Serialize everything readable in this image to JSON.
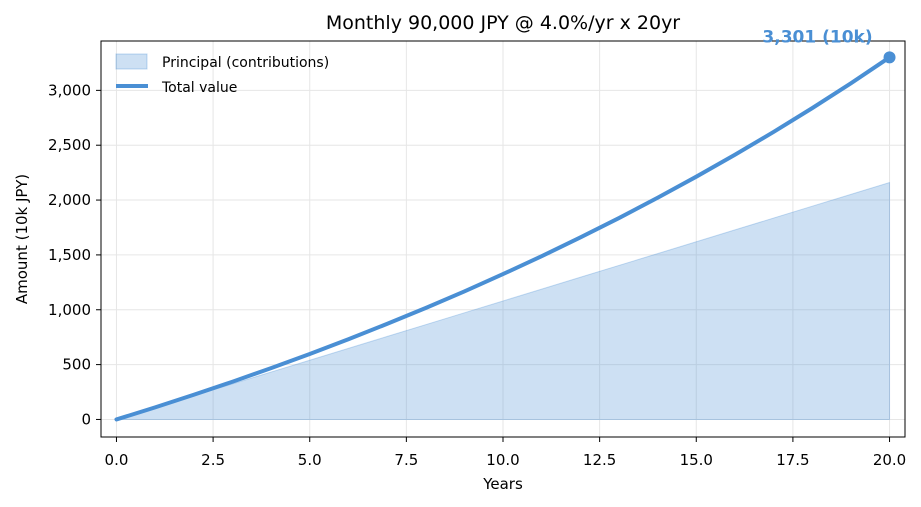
{
  "chart_data": {
    "type": "area",
    "title": "Monthly 90,000 JPY @ 4.0%/yr x 20yr",
    "xlabel": "Years",
    "ylabel": "Amount (10k JPY)",
    "xlim": [
      -0.4,
      20.4
    ],
    "ylim": [
      -160,
      3450
    ],
    "x_ticks": [
      0,
      2.5,
      5,
      7.5,
      10,
      12.5,
      15,
      17.5,
      20
    ],
    "x_tick_labels": [
      "0.0",
      "2.5",
      "5.0",
      "7.5",
      "10.0",
      "12.5",
      "15.0",
      "17.5",
      "20.0"
    ],
    "y_ticks": [
      0,
      500,
      1000,
      1500,
      2000,
      2500,
      3000
    ],
    "y_tick_labels": [
      "0",
      "500",
      "1,000",
      "1,500",
      "2,000",
      "2,500",
      "3,000"
    ],
    "grid": true,
    "legend_position": "top-left",
    "x": [
      0,
      1,
      2,
      3,
      4,
      5,
      6,
      7,
      8,
      9,
      10,
      11,
      12,
      13,
      14,
      15,
      16,
      17,
      18,
      19,
      20
    ],
    "series": [
      {
        "name": "Principal (contributions)",
        "kind": "area",
        "color": "#4a8fd4",
        "values": [
          0,
          108,
          216,
          324,
          432,
          540,
          648,
          756,
          864,
          972,
          1080,
          1188,
          1296,
          1404,
          1512,
          1620,
          1728,
          1836,
          1944,
          2052,
          2160
        ]
      },
      {
        "name": "Total value",
        "kind": "line",
        "color": "#4a8fd4",
        "values": [
          0,
          110,
          225,
          344,
          468,
          597,
          731,
          871,
          1016,
          1167,
          1325,
          1488,
          1659,
          1836,
          2021,
          2213,
          2413,
          2621,
          2838,
          3064,
          3301
        ]
      }
    ],
    "annotations": [
      {
        "text": "3,301 (10k)",
        "x": 20,
        "y": 3301,
        "color": "#4a8fd4"
      }
    ]
  }
}
